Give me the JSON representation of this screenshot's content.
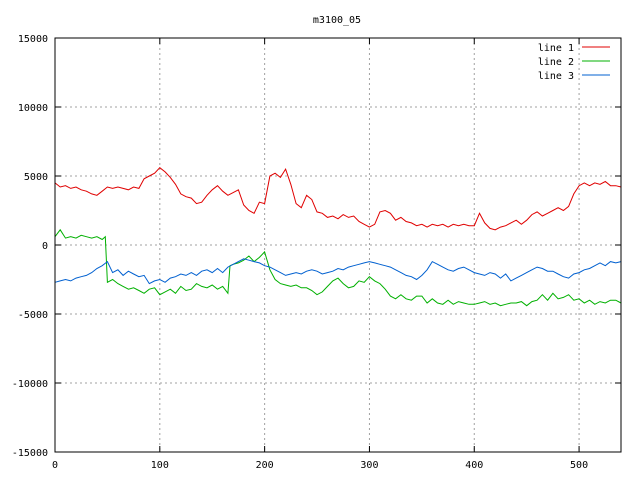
{
  "chart_data": {
    "type": "line",
    "title": "m3100_05",
    "xlabel": "",
    "ylabel": "",
    "xlim": [
      0,
      540
    ],
    "ylim": [
      -15000,
      15000
    ],
    "xticks": [
      0,
      100,
      200,
      300,
      400,
      500
    ],
    "yticks": [
      -15000,
      -10000,
      -5000,
      0,
      5000,
      10000,
      15000
    ],
    "grid": true,
    "legend_position": "top-right",
    "series": [
      {
        "name": "line 1",
        "color": "#e00000",
        "x": [
          0,
          5,
          10,
          15,
          20,
          25,
          30,
          35,
          40,
          45,
          50,
          55,
          60,
          65,
          70,
          75,
          80,
          85,
          90,
          95,
          100,
          105,
          110,
          115,
          120,
          125,
          130,
          135,
          140,
          145,
          150,
          155,
          160,
          165,
          170,
          175,
          180,
          185,
          190,
          195,
          200,
          205,
          210,
          215,
          220,
          225,
          230,
          235,
          240,
          245,
          250,
          255,
          260,
          265,
          270,
          275,
          280,
          285,
          290,
          295,
          300,
          305,
          310,
          315,
          320,
          325,
          330,
          335,
          340,
          345,
          350,
          355,
          360,
          365,
          370,
          375,
          380,
          385,
          390,
          395,
          400,
          405,
          410,
          415,
          420,
          425,
          430,
          435,
          440,
          445,
          450,
          455,
          460,
          465,
          470,
          475,
          480,
          485,
          490,
          495,
          500,
          505,
          510,
          515,
          520,
          525,
          530,
          535,
          540
        ],
        "values": [
          4500,
          4200,
          4300,
          4100,
          4200,
          4000,
          3900,
          3700,
          3600,
          3900,
          4200,
          4100,
          4200,
          4100,
          4000,
          4200,
          4100,
          4800,
          5000,
          5200,
          5600,
          5300,
          4900,
          4400,
          3700,
          3500,
          3400,
          3000,
          3100,
          3600,
          4000,
          4300,
          3900,
          3600,
          3800,
          4000,
          2900,
          2500,
          2300,
          3100,
          3000,
          5000,
          5200,
          4900,
          5500,
          4400,
          3000,
          2700,
          3600,
          3300,
          2400,
          2300,
          2000,
          2100,
          1900,
          2200,
          2000,
          2100,
          1700,
          1500,
          1300,
          1500,
          2400,
          2500,
          2300,
          1800,
          2000,
          1700,
          1600,
          1400,
          1500,
          1300,
          1500,
          1400,
          1500,
          1300,
          1500,
          1400,
          1500,
          1400,
          1400,
          2300,
          1600,
          1200,
          1100,
          1300,
          1400,
          1600,
          1800,
          1500,
          1800,
          2200,
          2400,
          2100,
          2300,
          2500,
          2700,
          2500,
          2800,
          3700,
          4300,
          4500,
          4300,
          4500,
          4400,
          4600,
          4300,
          4300,
          4200
        ]
      },
      {
        "name": "line 2",
        "color": "#00b000",
        "x": [
          0,
          5,
          10,
          15,
          20,
          25,
          30,
          35,
          40,
          45,
          48,
          50,
          55,
          60,
          65,
          70,
          75,
          80,
          85,
          90,
          95,
          100,
          105,
          110,
          115,
          120,
          125,
          130,
          135,
          140,
          145,
          150,
          155,
          160,
          165,
          167,
          170,
          175,
          180,
          185,
          190,
          195,
          200,
          205,
          210,
          215,
          220,
          225,
          230,
          235,
          240,
          245,
          250,
          255,
          260,
          265,
          270,
          275,
          280,
          285,
          290,
          295,
          300,
          305,
          310,
          315,
          320,
          325,
          330,
          335,
          340,
          345,
          350,
          355,
          360,
          365,
          370,
          375,
          380,
          385,
          390,
          395,
          400,
          405,
          410,
          415,
          420,
          425,
          430,
          435,
          440,
          445,
          450,
          455,
          460,
          465,
          470,
          475,
          480,
          485,
          490,
          495,
          500,
          505,
          510,
          515,
          520,
          525,
          530,
          535,
          540
        ],
        "values": [
          600,
          1100,
          500,
          600,
          500,
          700,
          600,
          500,
          600,
          400,
          600,
          -2700,
          -2500,
          -2800,
          -3000,
          -3200,
          -3100,
          -3300,
          -3500,
          -3200,
          -3100,
          -3600,
          -3400,
          -3200,
          -3500,
          -3000,
          -3300,
          -3200,
          -2800,
          -3000,
          -3100,
          -2900,
          -3200,
          -3000,
          -3500,
          -1500,
          -1400,
          -1300,
          -1100,
          -800,
          -1200,
          -900,
          -500,
          -1800,
          -2500,
          -2800,
          -2900,
          -3000,
          -2900,
          -3100,
          -3100,
          -3300,
          -3600,
          -3400,
          -3000,
          -2600,
          -2400,
          -2800,
          -3100,
          -3000,
          -2600,
          -2700,
          -2300,
          -2600,
          -2800,
          -3200,
          -3700,
          -3900,
          -3600,
          -3900,
          -4000,
          -3700,
          -3700,
          -4200,
          -3900,
          -4200,
          -4300,
          -4000,
          -4300,
          -4100,
          -4200,
          -4300,
          -4300,
          -4200,
          -4100,
          -4300,
          -4200,
          -4400,
          -4300,
          -4200,
          -4200,
          -4100,
          -4400,
          -4100,
          -4000,
          -3600,
          -4000,
          -3500,
          -3900,
          -3800,
          -3600,
          -4000,
          -3900,
          -4200,
          -4000,
          -4300,
          -4100,
          -4200,
          -4000,
          -4000,
          -4200
        ]
      },
      {
        "name": "line 3",
        "color": "#0060d0",
        "x": [
          0,
          5,
          10,
          15,
          20,
          25,
          30,
          35,
          40,
          45,
          50,
          55,
          60,
          65,
          70,
          75,
          80,
          85,
          90,
          95,
          100,
          105,
          110,
          115,
          120,
          125,
          130,
          135,
          140,
          145,
          150,
          155,
          160,
          165,
          170,
          175,
          180,
          185,
          190,
          195,
          200,
          205,
          210,
          215,
          220,
          225,
          230,
          235,
          240,
          245,
          250,
          255,
          260,
          265,
          270,
          275,
          280,
          285,
          290,
          295,
          300,
          305,
          310,
          315,
          320,
          325,
          330,
          335,
          340,
          345,
          350,
          355,
          360,
          365,
          370,
          375,
          380,
          385,
          390,
          395,
          400,
          405,
          410,
          415,
          420,
          425,
          430,
          435,
          440,
          445,
          450,
          455,
          460,
          465,
          470,
          475,
          480,
          485,
          490,
          495,
          500,
          505,
          510,
          515,
          520,
          525,
          530,
          535,
          540
        ],
        "values": [
          -2700,
          -2600,
          -2500,
          -2600,
          -2400,
          -2300,
          -2200,
          -2000,
          -1700,
          -1500,
          -1200,
          -2000,
          -1800,
          -2200,
          -1900,
          -2100,
          -2300,
          -2200,
          -2800,
          -2600,
          -2500,
          -2700,
          -2400,
          -2300,
          -2100,
          -2200,
          -2000,
          -2200,
          -1900,
          -1800,
          -2000,
          -1700,
          -2000,
          -1600,
          -1400,
          -1200,
          -1000,
          -1100,
          -1200,
          -1300,
          -1500,
          -1600,
          -1800,
          -2000,
          -2200,
          -2100,
          -2000,
          -2100,
          -1900,
          -1800,
          -1900,
          -2100,
          -2000,
          -1900,
          -1700,
          -1800,
          -1600,
          -1500,
          -1400,
          -1300,
          -1200,
          -1300,
          -1400,
          -1500,
          -1600,
          -1800,
          -2000,
          -2200,
          -2300,
          -2500,
          -2200,
          -1800,
          -1200,
          -1400,
          -1600,
          -1800,
          -1900,
          -1700,
          -1600,
          -1800,
          -2000,
          -2100,
          -2200,
          -2000,
          -2100,
          -2400,
          -2100,
          -2600,
          -2400,
          -2200,
          -2000,
          -1800,
          -1600,
          -1700,
          -1900,
          -1900,
          -2100,
          -2300,
          -2400,
          -2100,
          -2000,
          -1800,
          -1700,
          -1500,
          -1300,
          -1500,
          -1200,
          -1300,
          -1200
        ]
      }
    ]
  }
}
